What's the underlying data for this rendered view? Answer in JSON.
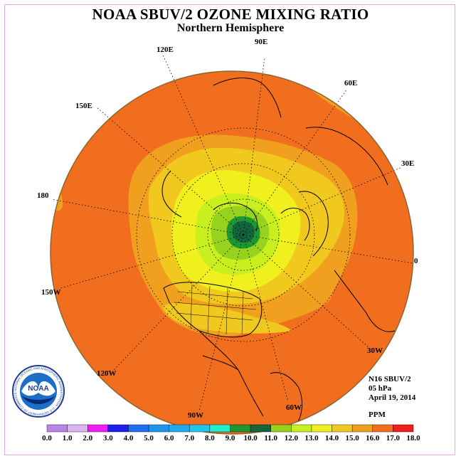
{
  "title": "NOAA SBUV/2 OZONE MIXING RATIO",
  "subtitle": "Northern Hemisphere",
  "longitude_labels": [
    "90E",
    "60E",
    "30E",
    "0",
    "30W",
    "60W",
    "90W",
    "120W",
    "150W",
    "180",
    "150E",
    "120E"
  ],
  "info": {
    "satellite": "N16 SBUV/2",
    "level": "05 hPa",
    "date": "April 19, 2014",
    "units": "PPM"
  },
  "logo": {
    "text": "NOAA",
    "ring_text": "NATIONAL OCEANIC AND ATMOSPHERIC ADMINISTRATION · U.S. DEPARTMENT OF COMMERCE"
  },
  "color_scale": {
    "labels": [
      "0.0",
      "1.0",
      "2.0",
      "3.0",
      "4.0",
      "5.0",
      "6.0",
      "7.0",
      "8.0",
      "9.0",
      "10.0",
      "11.0",
      "12.0",
      "13.0",
      "14.0",
      "15.0",
      "16.0",
      "17.0",
      "18.0"
    ],
    "colors": [
      "#b784e8",
      "#d8b4f0",
      "#f01ef0",
      "#1e1ef0",
      "#1e6ef0",
      "#1e96f0",
      "#1eaaf0",
      "#1ec8f0",
      "#1ef0d2",
      "#1e9632",
      "#14643c",
      "#96d21e",
      "#c8f01e",
      "#f0f01e",
      "#f0c81e",
      "#f0a01e",
      "#f06e1e",
      "#f01e1e",
      "#8c5a3c"
    ]
  }
}
